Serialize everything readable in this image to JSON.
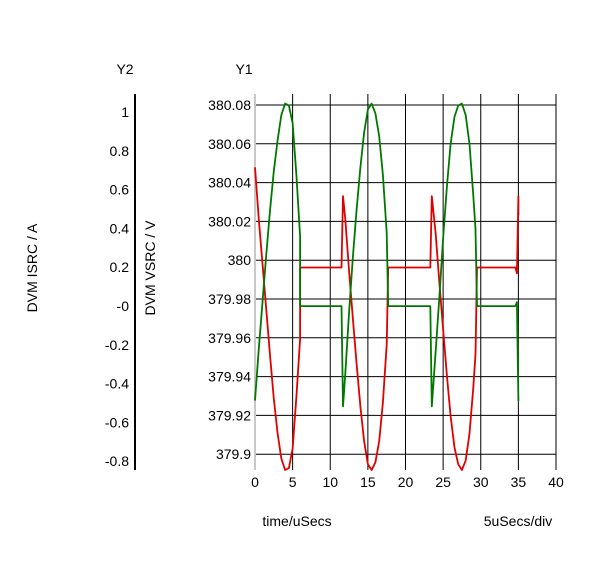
{
  "chart_data": {
    "type": "line",
    "y2_axis_title": "Y2",
    "y1_axis_title": "Y1",
    "y2_label": "DVM ISRC / A",
    "y1_label": "DVM VSRC / V",
    "xlabel": "time/uSecs",
    "x_scale_note": "5uSecs/div",
    "xlim": [
      0,
      40
    ],
    "y1lim": [
      379.89,
      380.09
    ],
    "y2lim": [
      -0.85,
      1.1
    ],
    "grid": true,
    "x_ticks": [
      "0",
      "5",
      "10",
      "15",
      "20",
      "25",
      "30",
      "35",
      "40"
    ],
    "y1_ticks": [
      "380.08",
      "380.06",
      "380.04",
      "380.02",
      "380",
      "379.98",
      "379.96",
      "379.94",
      "379.92",
      "379.9"
    ],
    "y2_ticks": [
      "1",
      "0.8",
      "0.6",
      "0.4",
      "0.2",
      "-0",
      "-0.2",
      "-0.4",
      "-0.6",
      "-0.8"
    ],
    "series": [
      {
        "color": "#e00000",
        "axis": "y2",
        "points": [
          [
            0,
            0.72
          ],
          [
            0.5,
            0.45
          ],
          [
            1,
            0.22
          ],
          [
            1.5,
            -0.02
          ],
          [
            2,
            -0.26
          ],
          [
            2.5,
            -0.48
          ],
          [
            3,
            -0.66
          ],
          [
            3.5,
            -0.79
          ],
          [
            4,
            -0.85
          ],
          [
            4.5,
            -0.84
          ],
          [
            5,
            -0.74
          ],
          [
            5.5,
            -0.47
          ],
          [
            6,
            -0.17
          ],
          [
            6,
            0.2
          ],
          [
            7,
            0.2
          ],
          [
            8,
            0.2
          ],
          [
            9,
            0.2
          ],
          [
            10,
            0.2
          ],
          [
            11,
            0.2
          ],
          [
            11.5,
            0.2
          ],
          [
            11.7,
            0.57
          ],
          [
            12,
            0.45
          ],
          [
            12.5,
            0.18
          ],
          [
            13,
            -0.06
          ],
          [
            13.5,
            -0.3
          ],
          [
            14,
            -0.52
          ],
          [
            14.5,
            -0.7
          ],
          [
            15,
            -0.82
          ],
          [
            15.5,
            -0.85
          ],
          [
            16,
            -0.81
          ],
          [
            16.5,
            -0.7
          ],
          [
            17,
            -0.5
          ],
          [
            17.5,
            -0.2
          ],
          [
            17.7,
            0.2
          ],
          [
            18.5,
            0.2
          ],
          [
            20,
            0.2
          ],
          [
            22,
            0.2
          ],
          [
            23,
            0.2
          ],
          [
            23.3,
            0.2
          ],
          [
            23.5,
            0.57
          ],
          [
            24,
            0.38
          ],
          [
            24.5,
            0.12
          ],
          [
            25,
            -0.12
          ],
          [
            25.5,
            -0.36
          ],
          [
            26,
            -0.57
          ],
          [
            26.5,
            -0.73
          ],
          [
            27,
            -0.82
          ],
          [
            27.5,
            -0.85
          ],
          [
            28,
            -0.8
          ],
          [
            28.5,
            -0.66
          ],
          [
            29,
            -0.43
          ],
          [
            29.3,
            -0.25
          ],
          [
            29.5,
            0.2
          ],
          [
            31,
            0.2
          ],
          [
            33,
            0.2
          ],
          [
            34.6,
            0.2
          ],
          [
            34.8,
            0.17
          ],
          [
            35,
            0.57
          ],
          [
            35,
            0.47
          ]
        ]
      },
      {
        "color": "#007800",
        "axis": "y2",
        "points": [
          [
            0,
            -0.49
          ],
          [
            0.5,
            -0.22
          ],
          [
            1,
            0.02
          ],
          [
            1.5,
            0.27
          ],
          [
            2,
            0.5
          ],
          [
            2.5,
            0.7
          ],
          [
            3,
            0.86
          ],
          [
            3.5,
            0.99
          ],
          [
            4,
            1.05
          ],
          [
            4.5,
            1.04
          ],
          [
            5,
            0.95
          ],
          [
            5.5,
            0.68
          ],
          [
            6,
            0.36
          ],
          [
            6,
            0
          ],
          [
            7,
            0
          ],
          [
            8,
            0
          ],
          [
            9,
            0
          ],
          [
            10,
            0
          ],
          [
            11,
            0
          ],
          [
            11.5,
            0
          ],
          [
            11.7,
            -0.52
          ],
          [
            12,
            -0.35
          ],
          [
            12.5,
            -0.03
          ],
          [
            13,
            0.25
          ],
          [
            13.5,
            0.5
          ],
          [
            14,
            0.72
          ],
          [
            14.5,
            0.9
          ],
          [
            15,
            1.02
          ],
          [
            15.5,
            1.05
          ],
          [
            16,
            1
          ],
          [
            16.5,
            0.88
          ],
          [
            17,
            0.68
          ],
          [
            17.5,
            0.38
          ],
          [
            17.7,
            0
          ],
          [
            18.5,
            0
          ],
          [
            20,
            0
          ],
          [
            22,
            0
          ],
          [
            23,
            0
          ],
          [
            23.3,
            0
          ],
          [
            23.5,
            -0.52
          ],
          [
            24,
            -0.24
          ],
          [
            24.5,
            0.05
          ],
          [
            25,
            0.35
          ],
          [
            25.5,
            0.62
          ],
          [
            26,
            0.84
          ],
          [
            26.5,
            0.98
          ],
          [
            27,
            1.04
          ],
          [
            27.5,
            1.05
          ],
          [
            28,
            0.99
          ],
          [
            28.5,
            0.84
          ],
          [
            29,
            0.58
          ],
          [
            29.3,
            0.4
          ],
          [
            29.5,
            0
          ],
          [
            31,
            0
          ],
          [
            33,
            0
          ],
          [
            34.6,
            0
          ],
          [
            34.8,
            0.02
          ],
          [
            35,
            -0.49
          ],
          [
            35,
            -0.47
          ]
        ]
      }
    ]
  }
}
